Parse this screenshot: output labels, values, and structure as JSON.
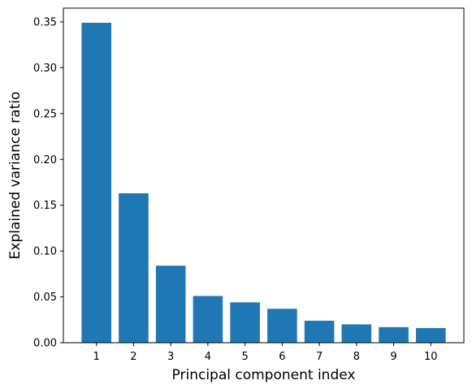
{
  "chart_data": {
    "type": "bar",
    "title": "",
    "xlabel": "Principal component index",
    "ylabel": "Explained variance ratio",
    "categories": [
      "1",
      "2",
      "3",
      "4",
      "5",
      "6",
      "7",
      "8",
      "9",
      "10"
    ],
    "values": [
      0.349,
      0.163,
      0.084,
      0.051,
      0.044,
      0.037,
      0.024,
      0.02,
      0.017,
      0.016
    ],
    "ylim": [
      0,
      0.365
    ],
    "yticks": [
      0.0,
      0.05,
      0.1,
      0.15,
      0.2,
      0.25,
      0.3,
      0.35
    ],
    "ytick_labels": [
      "0.00",
      "0.05",
      "0.10",
      "0.15",
      "0.20",
      "0.25",
      "0.30",
      "0.35"
    ],
    "grid": false,
    "legend": "none",
    "bar_color": "#1f77b4"
  }
}
